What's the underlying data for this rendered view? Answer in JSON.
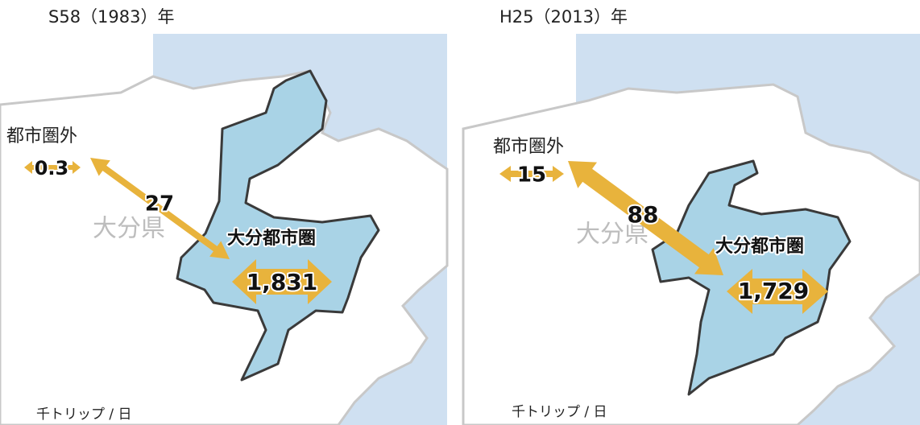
{
  "panels": [
    {
      "title": "S58（1983）年",
      "outside_label": "都市圏外",
      "outside_value": "0.3",
      "flow_value": "27",
      "region_label": "大分県",
      "metro_label": "大分都市圏",
      "metro_value": "1,831",
      "unit": "千トリップ / 日"
    },
    {
      "title": "H25（2013）年",
      "outside_label": "都市圏外",
      "outside_value": "15",
      "flow_value": "88",
      "region_label": "大分県",
      "metro_label": "大分都市圏",
      "metro_value": "1,729",
      "unit": "千トリップ / 日"
    }
  ]
}
